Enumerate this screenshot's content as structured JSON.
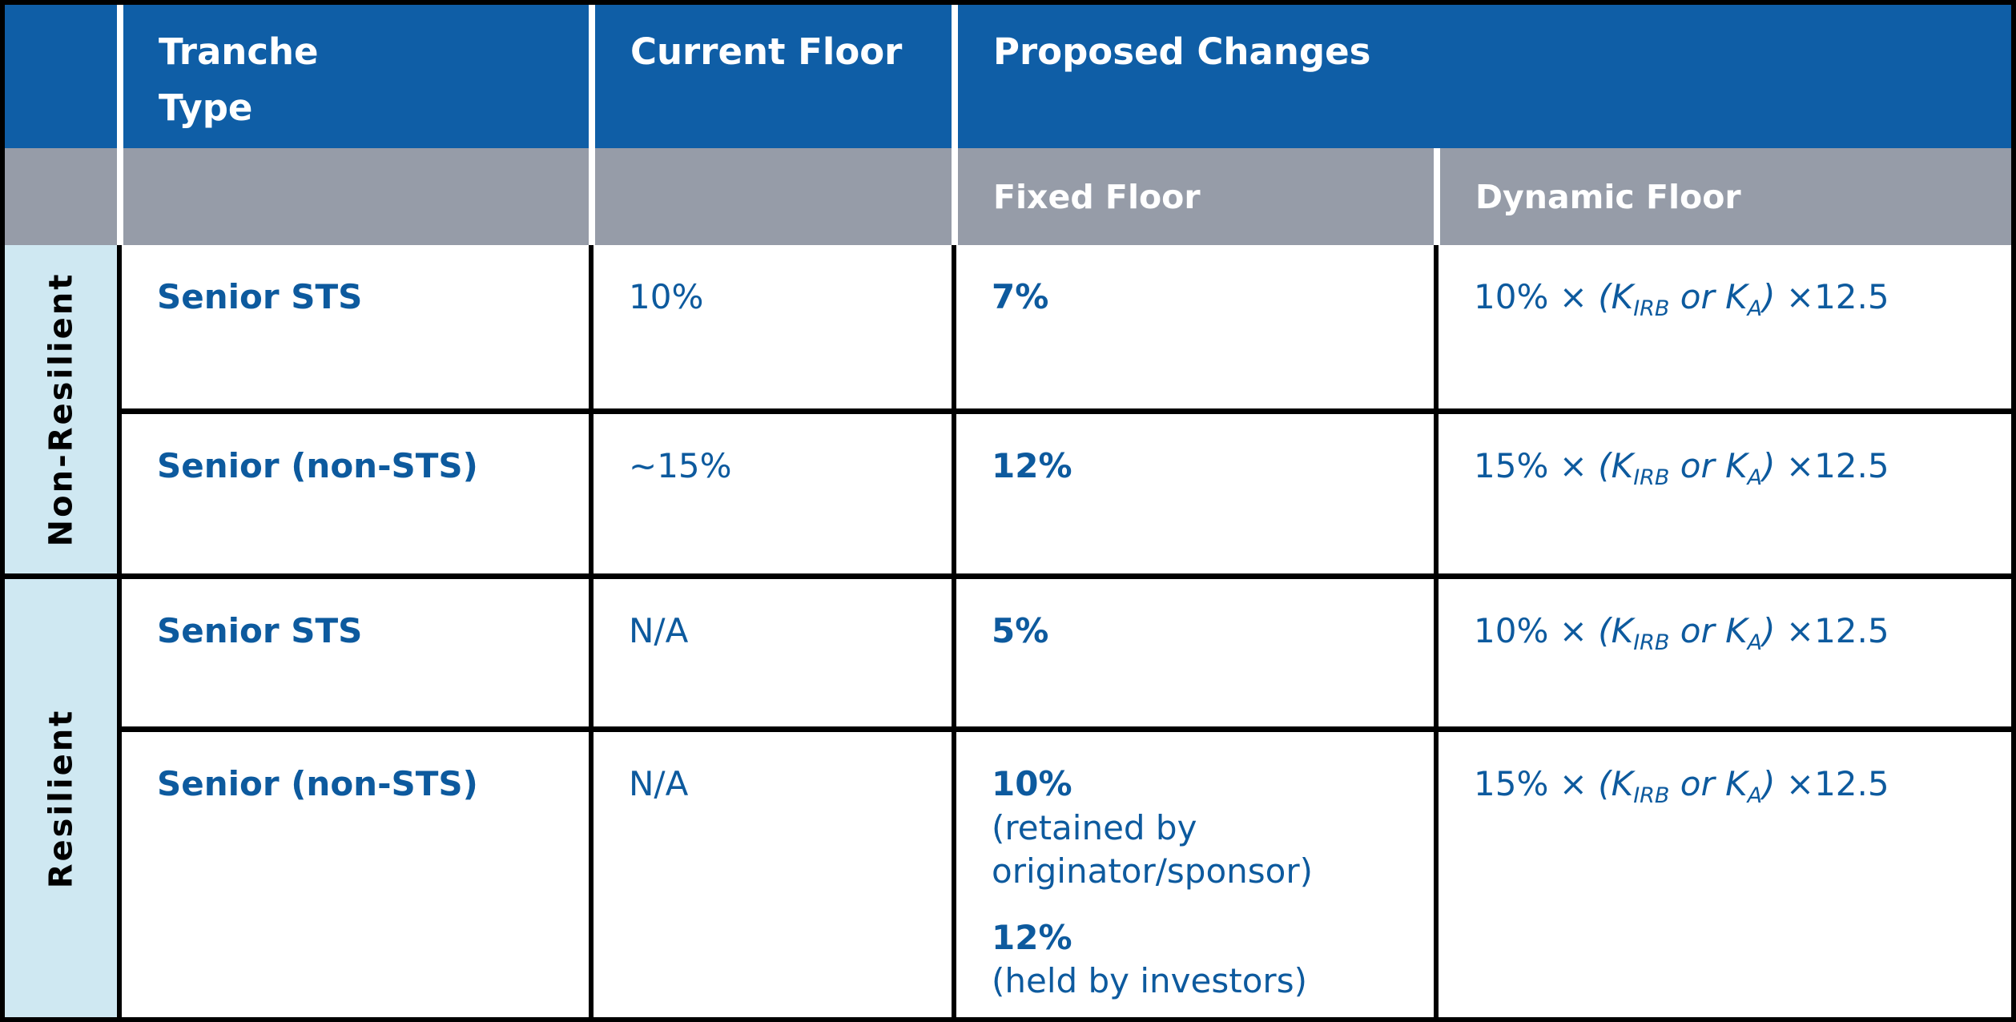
{
  "colors": {
    "header_blue": "#0f5ea6",
    "subheader_gray": "#969ca8",
    "group_light_blue": "#cfe8f2",
    "text_blue": "#0d5a9e",
    "grid_black": "#000000",
    "header_separator_white": "#ffffff"
  },
  "header": {
    "tranche_type": "Tranche\nType",
    "current_floor": "Current Floor",
    "proposed_changes": "Proposed Changes",
    "fixed_floor": "Fixed Floor",
    "dynamic_floor": "Dynamic Floor"
  },
  "groups": [
    {
      "label": "Non-Resilient"
    },
    {
      "label": "Resilient"
    }
  ],
  "rows": [
    {
      "tranche": "Senior STS",
      "current_floor": "10%",
      "fixed_floor": [
        {
          "value": "7%",
          "note": ""
        }
      ],
      "dynamic_floor": [
        {
          "t": "10% × ",
          "s": "n"
        },
        {
          "t": "(K",
          "s": "i"
        },
        {
          "t": "IRB",
          "s": "si"
        },
        {
          "t": " or K",
          "s": "i"
        },
        {
          "t": "A",
          "s": "si"
        },
        {
          "t": ")",
          "s": "i"
        },
        {
          "t": " ×12.5",
          "s": "n"
        }
      ]
    },
    {
      "tranche": "Senior (non-STS)",
      "current_floor": "~15%",
      "fixed_floor": [
        {
          "value": "12%",
          "note": ""
        }
      ],
      "dynamic_floor": [
        {
          "t": "15% × ",
          "s": "n"
        },
        {
          "t": "(K",
          "s": "i"
        },
        {
          "t": "IRB",
          "s": "si"
        },
        {
          "t": " or K",
          "s": "i"
        },
        {
          "t": "A",
          "s": "si"
        },
        {
          "t": ")",
          "s": "i"
        },
        {
          "t": " ×12.5",
          "s": "n"
        }
      ]
    },
    {
      "tranche": "Senior STS",
      "current_floor": "N/A",
      "fixed_floor": [
        {
          "value": "5%",
          "note": ""
        }
      ],
      "dynamic_floor": [
        {
          "t": "10% × ",
          "s": "n"
        },
        {
          "t": "(K",
          "s": "i"
        },
        {
          "t": "IRB",
          "s": "si"
        },
        {
          "t": " or K",
          "s": "i"
        },
        {
          "t": "A",
          "s": "si"
        },
        {
          "t": ")",
          "s": "i"
        },
        {
          "t": " ×12.5",
          "s": "n"
        }
      ]
    },
    {
      "tranche": "Senior (non-STS)",
      "current_floor": "N/A",
      "fixed_floor": [
        {
          "value": "10%",
          "note": "(retained by originator/sponsor)"
        },
        {
          "value": "12%",
          "note": "(held by investors)"
        }
      ],
      "dynamic_floor": [
        {
          "t": "15% × ",
          "s": "n"
        },
        {
          "t": "(K",
          "s": "i"
        },
        {
          "t": "IRB",
          "s": "si"
        },
        {
          "t": " or K",
          "s": "i"
        },
        {
          "t": "A",
          "s": "si"
        },
        {
          "t": ")",
          "s": "i"
        },
        {
          "t": " ×12.5",
          "s": "n"
        }
      ]
    }
  ]
}
